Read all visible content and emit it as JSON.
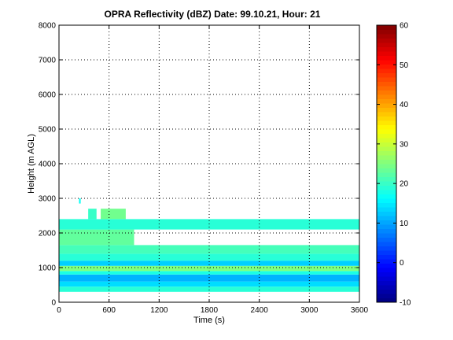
{
  "chart_data": {
    "type": "heatmap",
    "title": "OPRA Reflectivity (dBZ)  Date: 99.10.21, Hour: 21",
    "xlabel": "Time (s)",
    "ylabel": "Height (m AGL)",
    "xlim": [
      0,
      3600
    ],
    "ylim": [
      0,
      8000
    ],
    "x_ticks": [
      "0",
      "600",
      "1200",
      "1800",
      "2400",
      "3000",
      "3600"
    ],
    "y_ticks": [
      "0",
      "1000",
      "2000",
      "3000",
      "4000",
      "5000",
      "6000",
      "7000",
      "8000"
    ],
    "grid": true,
    "colorbar": {
      "range": [
        -10,
        60
      ],
      "ticks": [
        "-10",
        "0",
        "10",
        "20",
        "30",
        "40",
        "50",
        "60"
      ],
      "colormap": "jet"
    },
    "layers": [
      {
        "y0": 300,
        "y1": 450,
        "x0": 0,
        "x1": 3600,
        "dbz": 19
      },
      {
        "y0": 450,
        "y1": 600,
        "x0": 0,
        "x1": 3600,
        "dbz": 14
      },
      {
        "y0": 600,
        "y1": 800,
        "x0": 0,
        "x1": 3600,
        "dbz": 11
      },
      {
        "y0": 800,
        "y1": 900,
        "x0": 0,
        "x1": 3600,
        "dbz": 18
      },
      {
        "y0": 900,
        "y1": 1050,
        "x0": 0,
        "x1": 3600,
        "dbz": 25
      },
      {
        "y0": 1050,
        "y1": 1200,
        "x0": 0,
        "x1": 3600,
        "dbz": 13
      },
      {
        "y0": 1200,
        "y1": 1400,
        "x0": 0,
        "x1": 3600,
        "dbz": 19
      },
      {
        "y0": 1400,
        "y1": 1650,
        "x0": 0,
        "x1": 3600,
        "dbz": 21
      },
      {
        "y0": 1650,
        "y1": 2100,
        "x0": 0,
        "x1": 900,
        "dbz": 23
      },
      {
        "y0": 2100,
        "y1": 2400,
        "x0": 0,
        "x1": 3600,
        "dbz": 19
      }
    ],
    "features": [
      {
        "x0": 240,
        "x1": 260,
        "y0": 2850,
        "y1": 3000,
        "dbz": 17
      },
      {
        "x0": 350,
        "x1": 450,
        "y0": 2400,
        "y1": 2700,
        "dbz": 20
      },
      {
        "x0": 500,
        "x1": 800,
        "y0": 2400,
        "y1": 2700,
        "dbz": 24
      }
    ]
  }
}
